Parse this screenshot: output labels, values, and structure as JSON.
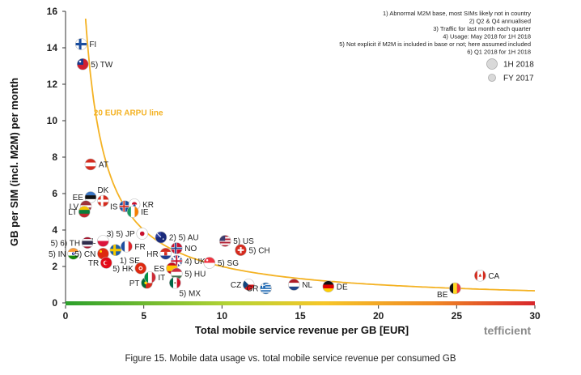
{
  "chart_data": {
    "type": "scatter",
    "title": "",
    "xlabel": "Total mobile service revenue per GB [EUR]",
    "ylabel": "GB per SIM (incl. M2M) per month",
    "xlim": [
      0,
      30
    ],
    "ylim": [
      0,
      16
    ],
    "xticks": [
      0,
      5,
      10,
      15,
      20,
      25,
      30
    ],
    "yticks": [
      0,
      2,
      4,
      6,
      8,
      10,
      12,
      14,
      16
    ],
    "grid": false,
    "curve": {
      "label": "20 EUR ARPU line",
      "arpu": 20,
      "color": "#f4b223"
    },
    "notes": [
      "1) Abnormal M2M base, most SIMs likely not in country",
      "2) Q2 & Q4 annualised",
      "3) Traffic for last month each quarter",
      "4) Usage: May 2018 for 1H 2018",
      "5) Not explicit if M2M is included in base or not; here  assumed included",
      "6) Q1 2018 for 1H 2018"
    ],
    "legend": {
      "position": "top-right",
      "items": [
        {
          "label": "1H 2018",
          "size": "large"
        },
        {
          "label": "FY 2017",
          "size": "small"
        }
      ]
    },
    "points": [
      {
        "label": "FI",
        "x": 1.0,
        "y": 14.2,
        "flag": "FI",
        "lpos": "right"
      },
      {
        "label": "5) TW",
        "x": 1.1,
        "y": 13.1,
        "flag": "TW",
        "lpos": "right"
      },
      {
        "label": "AT",
        "x": 1.6,
        "y": 7.6,
        "flag": "AT",
        "lpos": "right"
      },
      {
        "label": "EE",
        "x": 1.6,
        "y": 5.8,
        "flag": "EE",
        "lpos": "left"
      },
      {
        "label": "LV",
        "x": 1.3,
        "y": 5.3,
        "flag": "LV",
        "lpos": "left"
      },
      {
        "label": "LT",
        "x": 1.2,
        "y": 5.0,
        "flag": "LT",
        "lpos": "left"
      },
      {
        "label": "DK",
        "x": 2.4,
        "y": 5.6,
        "flag": "DK",
        "lpos": "top"
      },
      {
        "label": "IS",
        "x": 3.8,
        "y": 5.3,
        "flag": "IS",
        "lpos": "left"
      },
      {
        "label": "KR",
        "x": 4.4,
        "y": 5.4,
        "flag": "KR",
        "lpos": "right"
      },
      {
        "label": "IE",
        "x": 4.3,
        "y": 5.0,
        "flag": "IE",
        "lpos": "right"
      },
      {
        "label": "3) 5) JP",
        "x": 4.9,
        "y": 3.8,
        "flag": "JP",
        "lpos": "left"
      },
      {
        "label": "2) 5) AU",
        "x": 6.1,
        "y": 3.6,
        "flag": "AU",
        "lpos": "right"
      },
      {
        "label": "5) US",
        "x": 10.2,
        "y": 3.4,
        "flag": "US",
        "lpos": "right"
      },
      {
        "label": "PL",
        "x": 2.4,
        "y": 3.4,
        "flag": "PL",
        "lpos": "left"
      },
      {
        "label": "5) 6) TH",
        "x": 1.4,
        "y": 3.3,
        "flag": "TH",
        "lpos": "left"
      },
      {
        "label": "FR",
        "x": 3.9,
        "y": 3.1,
        "flag": "FR",
        "lpos": "right"
      },
      {
        "label": "NO",
        "x": 7.1,
        "y": 3.0,
        "flag": "NO",
        "lpos": "right"
      },
      {
        "label": "5) CH",
        "x": 11.2,
        "y": 2.9,
        "flag": "CH",
        "lpos": "right"
      },
      {
        "label": "5) IN",
        "x": 0.5,
        "y": 2.7,
        "flag": "IN",
        "lpos": "left"
      },
      {
        "label": "5) CN",
        "x": 2.4,
        "y": 2.7,
        "flag": "CN",
        "lpos": "left"
      },
      {
        "label": "1) SE",
        "x": 3.2,
        "y": 2.9,
        "flag": "SE",
        "lpos": "below"
      },
      {
        "label": "HR",
        "x": 6.4,
        "y": 2.7,
        "flag": "HR",
        "lpos": "left"
      },
      {
        "label": "4) UK",
        "x": 7.1,
        "y": 2.3,
        "flag": "UK",
        "lpos": "right"
      },
      {
        "label": "5) SG",
        "x": 9.2,
        "y": 2.2,
        "flag": "SG",
        "lpos": "right"
      },
      {
        "label": "TR",
        "x": 2.6,
        "y": 2.2,
        "flag": "TR",
        "lpos": "left"
      },
      {
        "label": "5) HK",
        "x": 4.8,
        "y": 1.9,
        "flag": "HK",
        "lpos": "left"
      },
      {
        "label": "ES",
        "x": 6.8,
        "y": 1.9,
        "flag": "ES",
        "lpos": "left"
      },
      {
        "label": "5) HU",
        "x": 7.1,
        "y": 1.6,
        "flag": "HU",
        "lpos": "right"
      },
      {
        "label": "PT",
        "x": 5.2,
        "y": 1.1,
        "flag": "PT",
        "lpos": "left"
      },
      {
        "label": "IT",
        "x": 5.4,
        "y": 1.4,
        "flag": "IT",
        "lpos": "right"
      },
      {
        "label": "5) MX",
        "x": 7.0,
        "y": 1.1,
        "flag": "MX",
        "lpos": "below"
      },
      {
        "label": "CZ",
        "x": 11.7,
        "y": 1.0,
        "flag": "CZ",
        "lpos": "left"
      },
      {
        "label": "GR",
        "x": 12.8,
        "y": 0.8,
        "flag": "GR",
        "lpos": "left"
      },
      {
        "label": "NL",
        "x": 14.6,
        "y": 1.0,
        "flag": "NL",
        "lpos": "right"
      },
      {
        "label": "DE",
        "x": 16.8,
        "y": 0.9,
        "flag": "DE",
        "lpos": "right"
      },
      {
        "label": "BE",
        "x": 24.9,
        "y": 0.8,
        "flag": "BE",
        "lpos": "leftbelow"
      },
      {
        "label": "CA",
        "x": 26.5,
        "y": 1.5,
        "flag": "CA",
        "lpos": "right"
      }
    ]
  },
  "brand": "tefficient",
  "caption": "Figure 15. Mobile data usage vs. total mobile service revenue per consumed GB"
}
